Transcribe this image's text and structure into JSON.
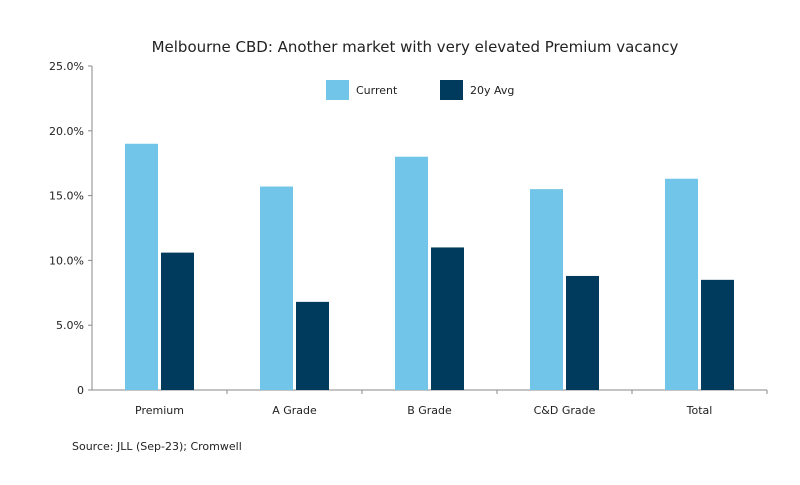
{
  "chart_data": {
    "type": "bar",
    "title": "Melbourne CBD: Another market with very elevated Premium vacancy",
    "categories": [
      "Premium",
      "A Grade",
      "B Grade",
      "C&D Grade",
      "Total"
    ],
    "series": [
      {
        "name": "Current",
        "color": "#71c5e8",
        "values": [
          19.0,
          15.7,
          18.0,
          15.5,
          16.3
        ]
      },
      {
        "name": "20y Avg",
        "color": "#003a5d",
        "values": [
          10.6,
          6.8,
          11.0,
          8.8,
          8.5
        ]
      }
    ],
    "ylim": [
      0,
      25
    ],
    "yticks": [
      {
        "value": 0,
        "label": "0"
      },
      {
        "value": 5,
        "label": "5.0%"
      },
      {
        "value": 10,
        "label": "10.0%"
      },
      {
        "value": 15,
        "label": "15.0%"
      },
      {
        "value": 20,
        "label": "20.0%"
      },
      {
        "value": 25,
        "label": "25.0%"
      }
    ],
    "xlabel": "",
    "ylabel": "",
    "grid": false,
    "legend_position": "top-center"
  },
  "source": "Source: JLL (Sep-23); Cromwell"
}
